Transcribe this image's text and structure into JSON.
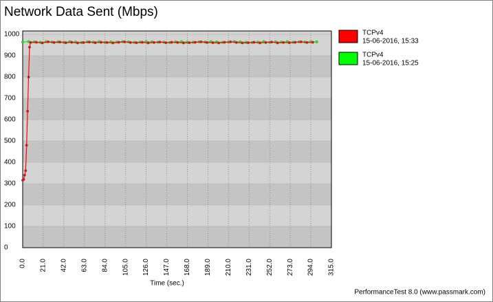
{
  "chart_data": {
    "type": "line",
    "title": "Network Data Sent (Mbps)",
    "x_label": "Time (sec.)",
    "footer": "PerformanceTest 8.0 (www.passmark.com)",
    "xlim": [
      0,
      315
    ],
    "ylim": [
      0,
      1000
    ],
    "yticks": [
      0,
      100,
      200,
      300,
      400,
      500,
      600,
      700,
      800,
      900,
      1000
    ],
    "xticks": [
      {
        "value": 0,
        "label": "0.0"
      },
      {
        "value": 21,
        "label": "21.0"
      },
      {
        "value": 42,
        "label": "42.0"
      },
      {
        "value": 63,
        "label": "63.0"
      },
      {
        "value": 84,
        "label": "84.0"
      },
      {
        "value": 105,
        "label": "105.0"
      },
      {
        "value": 126,
        "label": "126.0"
      },
      {
        "value": 147,
        "label": "147.0"
      },
      {
        "value": 168,
        "label": "168.0"
      },
      {
        "value": 189,
        "label": "189.0"
      },
      {
        "value": 210,
        "label": "210.0"
      },
      {
        "value": 231,
        "label": "231.0"
      },
      {
        "value": 252,
        "label": "252.0"
      },
      {
        "value": 273,
        "label": "273.0"
      },
      {
        "value": 294,
        "label": "294.0"
      },
      {
        "value": 315,
        "label": "315.0"
      }
    ],
    "grid": true,
    "legend": "right",
    "series": [
      {
        "name": "TCPv4",
        "date": "15-06-2016, 15:33",
        "color": "#ff0000",
        "x": [
          0,
          1,
          2,
          3,
          4,
          5,
          6,
          7,
          8,
          14,
          20,
          26,
          32,
          38,
          44,
          50,
          56,
          62,
          68,
          74,
          80,
          86,
          92,
          98,
          104,
          110,
          116,
          122,
          128,
          134,
          140,
          146,
          152,
          158,
          164,
          170,
          176,
          182,
          188,
          194,
          200,
          206,
          212,
          218,
          224,
          230,
          236,
          242,
          248,
          254,
          260,
          266,
          272,
          278,
          284,
          290,
          296
        ],
        "values": [
          316,
          320,
          340,
          361,
          480,
          640,
          800,
          940,
          962,
          963,
          960,
          965,
          962,
          964,
          961,
          963,
          960,
          962,
          964,
          961,
          963,
          962,
          960,
          963,
          965,
          962,
          961,
          963,
          960,
          962,
          964,
          961,
          963,
          962,
          960,
          961,
          963,
          965,
          962,
          961,
          960,
          963,
          965,
          962,
          960,
          961,
          963,
          960,
          962,
          964,
          960,
          962,
          961,
          963,
          965,
          962,
          963
        ]
      },
      {
        "name": "TCPv4",
        "date": "15-06-2016, 15:25",
        "color": "#00ff00",
        "x": [
          0,
          6,
          12,
          18,
          24,
          30,
          36,
          42,
          48,
          54,
          60,
          66,
          72,
          78,
          84,
          90,
          96,
          102,
          108,
          114,
          120,
          126,
          132,
          138,
          144,
          150,
          156,
          162,
          168,
          174,
          180,
          186,
          192,
          198,
          204,
          210,
          216,
          222,
          228,
          234,
          240,
          246,
          252,
          258,
          264,
          270,
          276,
          282,
          288,
          294,
          300
        ],
        "values": [
          964,
          966,
          965,
          963,
          966,
          964,
          965,
          963,
          966,
          964,
          962,
          965,
          964,
          966,
          963,
          965,
          964,
          966,
          965,
          963,
          964,
          966,
          965,
          963,
          964,
          962,
          965,
          966,
          964,
          963,
          965,
          964,
          966,
          965,
          963,
          964,
          966,
          965,
          963,
          962,
          964,
          966,
          963,
          965,
          964,
          966,
          963,
          965,
          964,
          966,
          965
        ]
      }
    ]
  }
}
